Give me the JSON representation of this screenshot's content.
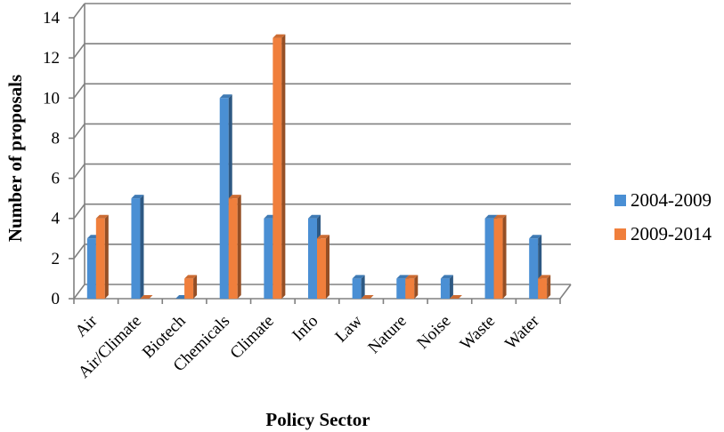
{
  "chart_data": {
    "type": "bar",
    "title": "",
    "xlabel": "Policy Sector",
    "ylabel": "Number of proposals",
    "ylim": [
      0,
      14
    ],
    "yticks": [
      0,
      2,
      4,
      6,
      8,
      10,
      12,
      14
    ],
    "grid": true,
    "legend_position": "right",
    "categories": [
      "Air",
      "Air/Climate",
      "Biotech",
      "Chemicals",
      "Climate",
      "Info",
      "Law",
      "Nature",
      "Noise",
      "Waste",
      "Water"
    ],
    "series": [
      {
        "name": "2004-2009",
        "color": "#4a8fd4",
        "values": [
          3,
          5,
          0,
          10,
          4,
          4,
          1,
          1,
          1,
          4,
          3
        ]
      },
      {
        "name": "2009-2014",
        "color": "#f07f3c",
        "values": [
          4,
          0,
          1,
          5,
          13,
          3,
          0,
          1,
          0,
          4,
          1
        ]
      }
    ]
  }
}
